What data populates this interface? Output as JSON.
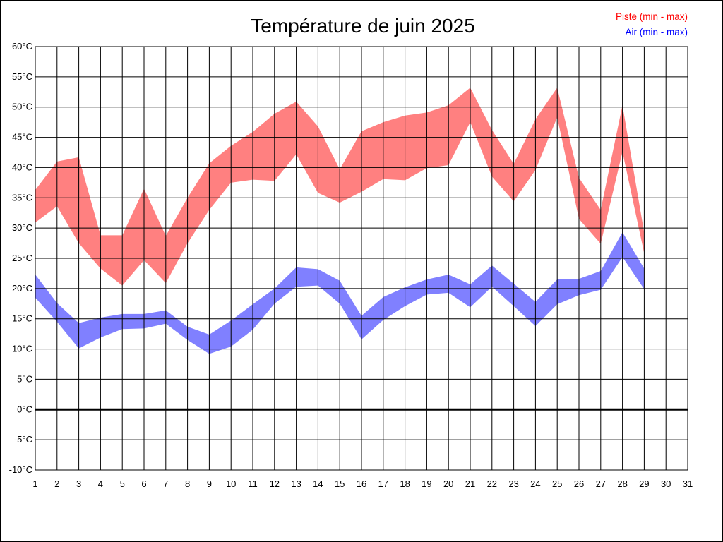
{
  "chart_data": {
    "type": "area",
    "title": "Température de juin 2025",
    "xlabel": "",
    "ylabel": "",
    "x": [
      1,
      2,
      3,
      4,
      5,
      6,
      7,
      8,
      9,
      10,
      11,
      12,
      13,
      14,
      15,
      16,
      17,
      18,
      19,
      20,
      21,
      22,
      23,
      24,
      25,
      26,
      27,
      28,
      29,
      30,
      31
    ],
    "xlim": [
      1,
      31
    ],
    "ylim": [
      -10,
      60
    ],
    "yticks": [
      -10,
      -5,
      0,
      5,
      10,
      15,
      20,
      25,
      30,
      35,
      40,
      45,
      50,
      55,
      60
    ],
    "ytick_labels": [
      "-10°C",
      "-5°C",
      "0°C",
      "5°C",
      "10°C",
      "15°C",
      "20°C",
      "25°C",
      "30°C",
      "35°C",
      "40°C",
      "45°C",
      "50°C",
      "55°C",
      "60°C"
    ],
    "grid": true,
    "legend_position": "top-right",
    "zero_line": true,
    "series": [
      {
        "name": "Piste (min - max)",
        "color": "#ff8080",
        "text_color": "#ff0000",
        "min": [
          30.9,
          33.6,
          27.5,
          23.3,
          20.5,
          24.7,
          20.9,
          27.5,
          33.0,
          37.5,
          38.0,
          37.8,
          42.2,
          35.8,
          34.2,
          36.0,
          38.1,
          37.9,
          39.9,
          40.4,
          47.5,
          38.5,
          34.4,
          39.6,
          48.3,
          31.5,
          27.4,
          42.6,
          25.8
        ],
        "max": [
          36.3,
          41.0,
          41.7,
          28.8,
          28.8,
          36.5,
          28.7,
          35.0,
          40.7,
          43.6,
          45.9,
          48.9,
          50.9,
          46.8,
          39.7,
          46.0,
          47.5,
          48.6,
          49.1,
          50.3,
          53.2,
          46.2,
          40.6,
          48.0,
          53.2,
          38.3,
          33.0,
          50.3,
          29.2
        ]
      },
      {
        "name": "Air (min - max)",
        "color": "#8080ff",
        "text_color": "#0000ff",
        "min": [
          18.5,
          14.5,
          10.1,
          11.9,
          13.3,
          13.4,
          14.2,
          11.5,
          9.2,
          10.4,
          13.2,
          17.5,
          20.3,
          20.5,
          17.5,
          11.6,
          14.8,
          17.1,
          19.0,
          19.3,
          16.9,
          20.3,
          17.1,
          13.8,
          17.4,
          18.9,
          19.8,
          25.2,
          19.9
        ],
        "max": [
          22.3,
          17.6,
          14.3,
          15.2,
          15.8,
          15.8,
          16.4,
          13.7,
          12.4,
          14.7,
          17.4,
          20.0,
          23.5,
          23.2,
          21.3,
          15.5,
          18.6,
          20.2,
          21.5,
          22.3,
          20.7,
          23.8,
          20.8,
          17.8,
          21.5,
          21.6,
          22.9,
          29.3,
          23.3
        ]
      }
    ]
  }
}
